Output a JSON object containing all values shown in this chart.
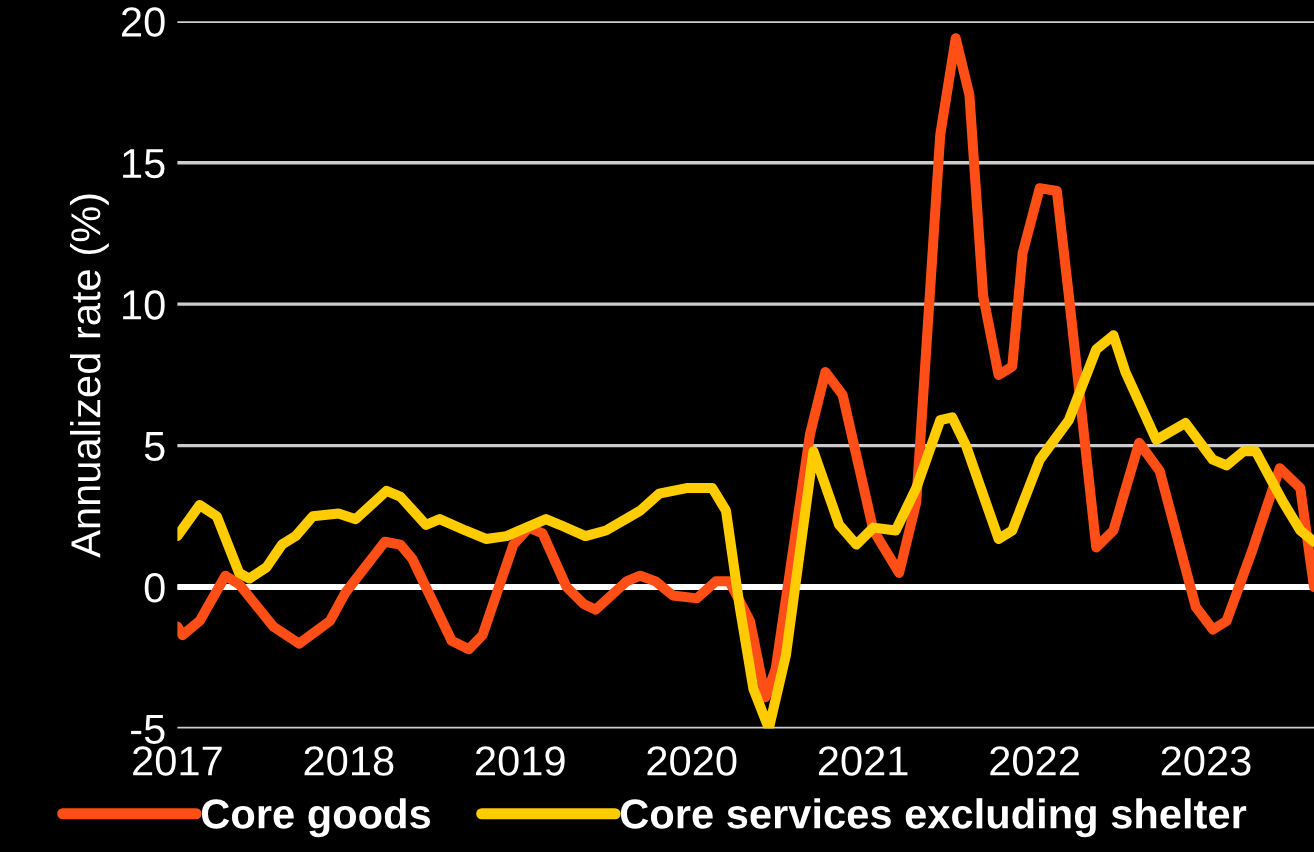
{
  "chart_data": {
    "type": "line",
    "ylabel": "Annualized rate (%)",
    "xlim": [
      2017,
      2023.63
    ],
    "xticks": [
      2017,
      2018,
      2019,
      2020,
      2021,
      2022,
      2023
    ],
    "ylim": [
      -5,
      20
    ],
    "yticks": [
      -5,
      0,
      5,
      10,
      15,
      20
    ],
    "grid": "y",
    "legend": "bottom",
    "ref_lines": [
      {
        "axis": "y",
        "value": 0,
        "color": "#ffffff"
      }
    ],
    "series": [
      {
        "name": "Core goods",
        "color": "#ff4e16",
        "x": [
          2017.0,
          2017.03,
          2017.13,
          2017.28,
          2017.36,
          2017.56,
          2017.71,
          2017.89,
          2017.98,
          2018.21,
          2018.3,
          2018.37,
          2018.6,
          2018.7,
          2018.78,
          2018.96,
          2019.05,
          2019.13,
          2019.27,
          2019.37,
          2019.44,
          2019.62,
          2019.7,
          2019.79,
          2019.89,
          2020.03,
          2020.14,
          2020.22,
          2020.34,
          2020.43,
          2020.49,
          2020.69,
          2020.78,
          2020.88,
          2021.06,
          2021.21,
          2021.31,
          2021.45,
          2021.54,
          2021.62,
          2021.7,
          2021.79,
          2021.87,
          2021.93,
          2022.03,
          2022.13,
          2022.2,
          2022.36,
          2022.46,
          2022.61,
          2022.73,
          2022.94,
          2023.04,
          2023.12,
          2023.27,
          2023.43,
          2023.55,
          2023.63
        ],
        "values": [
          -1.4,
          -1.7,
          -1.2,
          0.4,
          0.1,
          -1.4,
          -2.0,
          -1.2,
          -0.2,
          1.6,
          1.5,
          1.0,
          -1.9,
          -2.2,
          -1.7,
          1.5,
          2.1,
          1.9,
          0.0,
          -0.6,
          -0.8,
          0.2,
          0.4,
          0.2,
          -0.3,
          -0.4,
          0.2,
          0.2,
          -1.2,
          -3.9,
          -2.9,
          5.4,
          7.6,
          6.8,
          2.0,
          0.5,
          3.0,
          16.0,
          19.4,
          17.4,
          10.3,
          7.5,
          7.8,
          11.8,
          14.1,
          14.0,
          10.3,
          1.4,
          2.0,
          5.1,
          4.1,
          -0.7,
          -1.5,
          -1.2,
          1.3,
          4.2,
          3.5,
          0.0
        ]
      },
      {
        "name": "Core services excluding shelter",
        "color": "#ffcc00",
        "x": [
          2017.0,
          2017.13,
          2017.23,
          2017.36,
          2017.42,
          2017.52,
          2017.61,
          2017.69,
          2017.79,
          2017.94,
          2018.04,
          2018.22,
          2018.3,
          2018.45,
          2018.53,
          2018.68,
          2018.8,
          2018.92,
          2019.15,
          2019.23,
          2019.38,
          2019.5,
          2019.7,
          2019.81,
          2019.97,
          2020.12,
          2020.2,
          2020.28,
          2020.36,
          2020.45,
          2020.55,
          2020.71,
          2020.86,
          2020.96,
          2021.06,
          2021.19,
          2021.31,
          2021.45,
          2021.52,
          2021.6,
          2021.79,
          2021.87,
          2022.03,
          2022.2,
          2022.36,
          2022.46,
          2022.53,
          2022.71,
          2022.88,
          2023.04,
          2023.12,
          2023.22,
          2023.29,
          2023.45,
          2023.55,
          2023.63
        ],
        "values": [
          1.8,
          2.9,
          2.5,
          0.5,
          0.3,
          0.7,
          1.5,
          1.8,
          2.5,
          2.6,
          2.4,
          3.4,
          3.2,
          2.2,
          2.4,
          2.0,
          1.7,
          1.8,
          2.4,
          2.2,
          1.8,
          2.0,
          2.7,
          3.3,
          3.5,
          3.5,
          2.7,
          -0.7,
          -3.6,
          -5.0,
          -2.4,
          4.8,
          2.2,
          1.5,
          2.1,
          2.0,
          3.5,
          5.9,
          6.0,
          5.0,
          1.7,
          2.0,
          4.5,
          5.9,
          8.4,
          8.9,
          7.6,
          5.2,
          5.8,
          4.5,
          4.3,
          4.8,
          4.8,
          3.0,
          2.0,
          1.6
        ]
      }
    ]
  }
}
